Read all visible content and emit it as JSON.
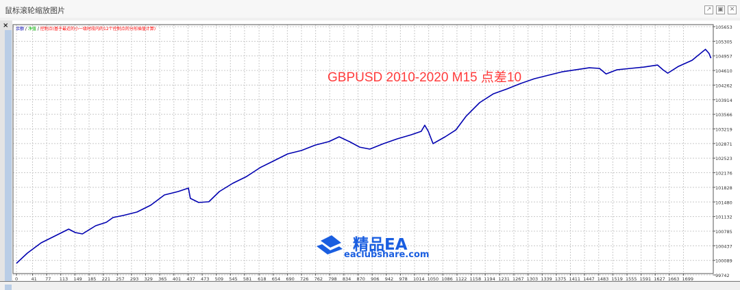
{
  "window": {
    "title": "鼠标滚轮缩放图片",
    "close_label": "×"
  },
  "legend": {
    "balance": "余额",
    "equity": "净值",
    "margin": "控制点(基于最近的小一级时段内的12个控制点的分形插值计算)",
    "sep": " / "
  },
  "annotation": "GBPUSD 2010-2020 M15 点差10",
  "watermark": {
    "name": "精品EA",
    "site": "eaclubshare.com"
  },
  "colors": {
    "line": "#0000b0",
    "annotation": "#ff3b3b",
    "balance": "#0000b0",
    "equity": "#00b000",
    "margin": "#ff0000"
  },
  "chart_data": {
    "type": "line",
    "title": "GBPUSD 2010-2020 M15 点差10",
    "xlabel": "",
    "ylabel": "",
    "ylim": [
      99742,
      105653
    ],
    "xlim": [
      0,
      1770
    ],
    "grid": true,
    "y_ticks": [
      105653,
      105305,
      104957,
      104610,
      104262,
      103914,
      103566,
      103219,
      102871,
      102523,
      102176,
      101828,
      101480,
      101132,
      100785,
      100437,
      100089,
      99742
    ],
    "x_ticks": [
      0,
      41,
      77,
      113,
      149,
      185,
      221,
      257,
      293,
      329,
      365,
      401,
      437,
      473,
      509,
      545,
      581,
      618,
      654,
      690,
      726,
      762,
      798,
      834,
      870,
      906,
      942,
      978,
      1014,
      1050,
      1086,
      1122,
      1158,
      1194,
      1231,
      1267,
      1303,
      1339,
      1375,
      1411,
      1447,
      1483,
      1519,
      1555,
      1591,
      1627,
      1663,
      1699
    ],
    "series": [
      {
        "name": "余额",
        "x": [
          0,
          28,
          63,
          98,
          133,
          150,
          168,
          202,
          229,
          246,
          272,
          307,
          342,
          377,
          412,
          438,
          443,
          464,
          490,
          517,
          551,
          586,
          621,
          656,
          691,
          726,
          761,
          796,
          822,
          848,
          874,
          900,
          935,
          970,
          1005,
          1031,
          1040,
          1049,
          1061,
          1092,
          1119,
          1145,
          1180,
          1215,
          1249,
          1284,
          1319,
          1354,
          1389,
          1424,
          1459,
          1485,
          1502,
          1529,
          1564,
          1598,
          1633,
          1647,
          1659,
          1686,
          1721,
          1755,
          1764,
          1769
        ],
        "y": [
          100019,
          100263,
          100508,
          100670,
          100833,
          100751,
          100719,
          100914,
          100996,
          101110,
          101158,
          101240,
          101403,
          101647,
          101728,
          101810,
          101565,
          101468,
          101484,
          101728,
          101924,
          102086,
          102298,
          102461,
          102624,
          102705,
          102835,
          102917,
          103031,
          102917,
          102786,
          102738,
          102868,
          102982,
          103079,
          103161,
          103307,
          103161,
          102868,
          103031,
          103193,
          103519,
          103845,
          104056,
          104170,
          104300,
          104414,
          104496,
          104577,
          104626,
          104675,
          104659,
          104528,
          104626,
          104659,
          104691,
          104740,
          104626,
          104545,
          104707,
          104854,
          105114,
          105017,
          104903
        ]
      }
    ]
  }
}
